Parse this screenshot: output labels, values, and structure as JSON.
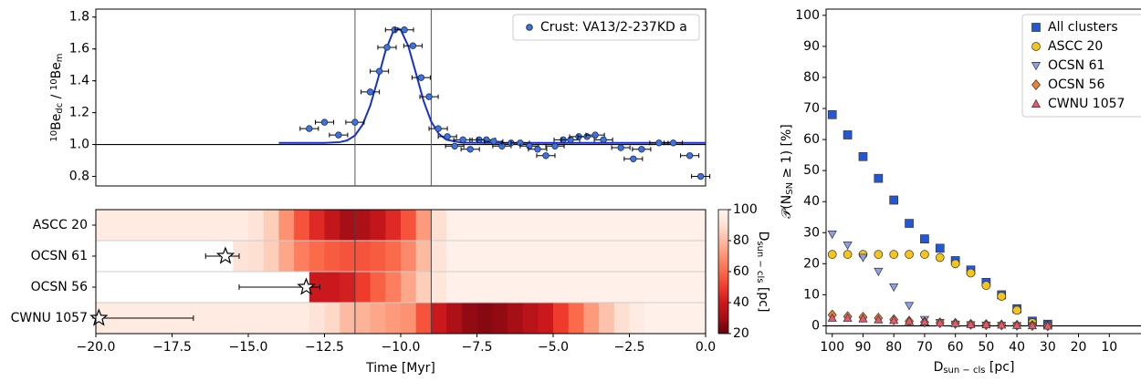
{
  "chart_data": [
    {
      "type": "scatter",
      "ylabel": [
        {
          "text": "10",
          "shift": "super"
        },
        {
          "text": "Be"
        },
        {
          "text": "dc",
          "shift": "sub"
        },
        {
          "text": " / "
        },
        {
          "text": "10",
          "shift": "super"
        },
        {
          "text": "Be"
        },
        {
          "text": "m",
          "shift": "sub"
        }
      ],
      "xlim": [
        -20,
        0
      ],
      "ylim": [
        0.74,
        1.85
      ],
      "yticks": [
        0.8,
        1.0,
        1.2,
        1.4,
        1.6,
        1.8
      ],
      "ytick_labels": [
        {
          "value": 0.8,
          "label": "0.8"
        },
        {
          "value": 1.0,
          "label": "1.0"
        },
        {
          "value": 1.2,
          "label": "1.2"
        },
        {
          "value": 1.4,
          "label": "1.4"
        },
        {
          "value": 1.6,
          "label": "1.6"
        },
        {
          "value": 1.8,
          "label": "1.8"
        }
      ],
      "hline": 1.0,
      "vlines": [
        -11.5,
        -9.0
      ],
      "legend": "upper right",
      "series": [
        {
          "name": "Crust: VA13/2-237KD a",
          "color": "#3d74e0",
          "x": [
            -13.0,
            -12.5,
            -12.04,
            -11.5,
            -11.0,
            -10.7,
            -10.45,
            -10.2,
            -9.88,
            -9.6,
            -9.33,
            -9.07,
            -8.77,
            -8.47,
            -8.23,
            -7.96,
            -7.72,
            -7.43,
            -7.19,
            -6.95,
            -6.68,
            -6.38,
            -6.08,
            -5.78,
            -5.51,
            -5.24,
            -4.94,
            -4.67,
            -4.43,
            -4.16,
            -3.89,
            -3.62,
            -3.35,
            -2.78,
            -2.37,
            -2.1,
            -1.53,
            -1.06,
            -0.52,
            -0.16
          ],
          "values": [
            1.1,
            1.14,
            1.06,
            1.14,
            1.33,
            1.46,
            1.61,
            1.72,
            1.72,
            1.62,
            1.42,
            1.3,
            1.1,
            1.05,
            0.99,
            1.03,
            0.97,
            1.03,
            1.03,
            1.02,
            0.99,
            1.01,
            1.01,
            0.99,
            0.97,
            0.93,
            0.99,
            1.03,
            1.03,
            1.05,
            1.05,
            1.06,
            1.03,
            0.98,
            0.91,
            0.97,
            1.01,
            1.01,
            0.93,
            0.8
          ],
          "xerr": [
            0.3,
            0.3,
            0.3,
            0.3,
            0.3,
            0.3,
            0.3,
            0.3,
            0.3,
            0.3,
            0.3,
            0.3,
            0.3,
            0.3,
            0.3,
            0.3,
            0.3,
            0.3,
            0.3,
            0.3,
            0.3,
            0.3,
            0.3,
            0.3,
            0.3,
            0.3,
            0.3,
            0.3,
            0.3,
            0.3,
            0.3,
            0.3,
            0.3,
            0.3,
            0.3,
            0.3,
            0.3,
            0.3,
            0.3,
            0.3
          ]
        }
      ],
      "fit": {
        "color": "#1531d6",
        "x": [
          -14,
          -13,
          -12.5,
          -12,
          -11.75,
          -11.5,
          -11.25,
          -11,
          -10.75,
          -10.5,
          -10.25,
          -10.1,
          -10,
          -9.75,
          -9.5,
          -9.25,
          -9,
          -8.75,
          -8.5,
          -8,
          -7,
          -5,
          0
        ],
        "values": [
          1.01,
          1.01,
          1.01,
          1.015,
          1.026,
          1.057,
          1.125,
          1.244,
          1.41,
          1.587,
          1.708,
          1.73,
          1.72,
          1.617,
          1.447,
          1.274,
          1.144,
          1.067,
          1.03,
          1.012,
          1.01,
          1.01,
          1.01
        ]
      }
    },
    {
      "type": "heatmap",
      "xlabel": "Time [Myr]",
      "xlim": [
        -20,
        0
      ],
      "xticks": [
        {
          "value": -20,
          "label": "−20.0"
        },
        {
          "value": -17.5,
          "label": "−17.5"
        },
        {
          "value": -15,
          "label": "−15.0"
        },
        {
          "value": -12.5,
          "label": "−12.5"
        },
        {
          "value": -10,
          "label": "−10.0"
        },
        {
          "value": -7.5,
          "label": "−7.5"
        },
        {
          "value": -5,
          "label": "−5.0"
        },
        {
          "value": -2.5,
          "label": "−2.5"
        },
        {
          "value": 0,
          "label": "0.0"
        }
      ],
      "vlines": [
        -11.5,
        -9.0
      ],
      "categories": [
        "ASCC 20",
        "OCSN 61",
        "OCSN 56",
        "CWNU 1057"
      ],
      "x": [
        -19.75,
        -19.25,
        -18.75,
        -18.25,
        -17.75,
        -17.25,
        -16.75,
        -16.25,
        -15.75,
        -15.25,
        -14.75,
        -14.25,
        -13.75,
        -13.25,
        -12.75,
        -12.25,
        -11.75,
        -11.25,
        -10.75,
        -10.25,
        -9.75,
        -9.25,
        -8.75,
        -8.25,
        -7.75,
        -7.25,
        -6.75,
        -6.25,
        -5.75,
        -5.25,
        -4.75,
        -4.25,
        -3.75,
        -3.25,
        -2.75,
        -2.25,
        -1.75,
        -1.25,
        -0.75,
        -0.25
      ],
      "values": [
        [
          95,
          95,
          95,
          95,
          95,
          95,
          95,
          95,
          95,
          95,
          92,
          85,
          70,
          55,
          45,
          38,
          30,
          32,
          38,
          45,
          55,
          72,
          90,
          98,
          98,
          98,
          98,
          98,
          98,
          98,
          98,
          98,
          98,
          98,
          98,
          98,
          98,
          98,
          98,
          98
        ],
        [
          null,
          null,
          null,
          null,
          null,
          null,
          null,
          null,
          null,
          92,
          90,
          85,
          75,
          65,
          60,
          57,
          55,
          55,
          57,
          60,
          68,
          80,
          92,
          98,
          98,
          98,
          98,
          98,
          98,
          98,
          98,
          98,
          98,
          98,
          98,
          98,
          98,
          98,
          98,
          98
        ],
        [
          null,
          null,
          null,
          null,
          null,
          null,
          null,
          null,
          null,
          null,
          null,
          null,
          null,
          null,
          40,
          40,
          42,
          50,
          58,
          65,
          75,
          85,
          93,
          98,
          98,
          98,
          98,
          98,
          98,
          98,
          98,
          98,
          98,
          98,
          98,
          98,
          98,
          98,
          98,
          98
        ],
        [
          95,
          95,
          95,
          95,
          95,
          95,
          95,
          95,
          95,
          95,
          95,
          95,
          95,
          95,
          92,
          88,
          80,
          78,
          75,
          72,
          70,
          55,
          40,
          32,
          27,
          25,
          27,
          30,
          35,
          40,
          50,
          60,
          72,
          82,
          90,
          95,
          98,
          98,
          98,
          98
        ]
      ],
      "markers": [
        null,
        {
          "value": -15.75,
          "err_low": 0.65,
          "err_high": 0.45
        },
        {
          "value": -13.1,
          "err_low": 2.2,
          "err_high": 0.45
        },
        {
          "value": -19.9,
          "err_low": 0.1,
          "err_high": 3.1
        }
      ],
      "colorbar": {
        "label": [
          {
            "text": "D"
          },
          {
            "text": "sun − cls",
            "shift": "sub"
          },
          {
            "text": " [pc]"
          }
        ],
        "lim": [
          20,
          100
        ],
        "ticks": [
          20,
          40,
          60,
          80,
          100
        ],
        "colormap": [
          "#67000d",
          "#a50f15",
          "#cb181d",
          "#ef3b2c",
          "#fb6a4a",
          "#fc9272",
          "#fcbba1",
          "#fee0d2",
          "#fff5f0"
        ]
      }
    },
    {
      "type": "scatter",
      "xlabel": [
        {
          "text": "D"
        },
        {
          "text": "sun − cls",
          "shift": "sub"
        },
        {
          "text": " [pc]"
        }
      ],
      "ylabel": [
        {
          "text": "𝒫(N"
        },
        {
          "text": "SN",
          "shift": "sub"
        },
        {
          "text": " ≥ 1) [%]"
        }
      ],
      "xlim": [
        102,
        0
      ],
      "ylim": [
        -2.5,
        102
      ],
      "xticks": [
        100,
        90,
        80,
        70,
        60,
        50,
        40,
        30,
        20,
        10
      ],
      "yticks": [
        0,
        10,
        20,
        30,
        40,
        50,
        60,
        70,
        80,
        90,
        100
      ],
      "hline": 0,
      "legend": "upper right",
      "x": [
        100,
        95,
        90,
        85,
        80,
        75,
        70,
        65,
        60,
        55,
        50,
        45,
        40,
        35,
        30
      ],
      "series": [
        {
          "name": "All clusters",
          "color": "#2457d6",
          "marker": "square",
          "values": [
            68,
            61.5,
            54.5,
            47.5,
            40.5,
            33,
            28,
            25,
            21,
            18,
            14,
            10,
            5.5,
            1.5,
            0.5
          ]
        },
        {
          "name": "ASCC 20",
          "color": "#f5c518",
          "marker": "circle",
          "values": [
            23,
            23,
            23,
            23,
            23,
            23,
            23,
            22,
            20,
            17,
            13,
            9.5,
            5,
            1,
            0.2
          ]
        },
        {
          "name": "OCSN 61",
          "color": "#8e9ee8",
          "marker": "triangle-down",
          "values": [
            29.5,
            26,
            22,
            17.5,
            12.5,
            6.5,
            2,
            1,
            0.5,
            0.3,
            0.2,
            0.1,
            0,
            0,
            0
          ]
        },
        {
          "name": "OCSN 56",
          "color": "#f07f2a",
          "marker": "diamond",
          "values": [
            3.5,
            3,
            2.8,
            2.5,
            2,
            1.5,
            1.2,
            1,
            0.8,
            0.5,
            0.4,
            0.3,
            0.2,
            0.1,
            0
          ]
        },
        {
          "name": "CWNU 1057",
          "color": "#e9566e",
          "marker": "triangle-up",
          "values": [
            2.5,
            2.5,
            2.3,
            2,
            1.8,
            1.5,
            1.3,
            1,
            0.8,
            0.5,
            0.4,
            0.3,
            0.2,
            0.1,
            0
          ]
        }
      ]
    }
  ]
}
